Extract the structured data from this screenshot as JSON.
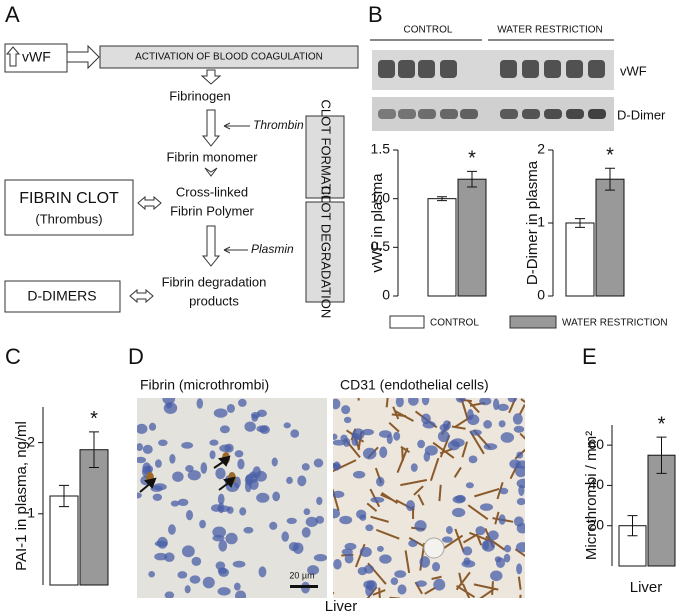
{
  "panel_letters": [
    "A",
    "B",
    "C",
    "D",
    "E"
  ],
  "diagram": {
    "vwf": "vWF",
    "activation": "ACTIVATION OF BLOOD COAGULATION",
    "fibrinogen": "Fibrinogen",
    "thrombin": "Thrombin",
    "fibrin_monomer": "Fibrin monomer",
    "cross_linked": "Cross-linked",
    "fibrin_polymer": "Fibrin Polymer",
    "fibrin_clot": "FIBRIN CLOT",
    "thrombus": "(Thrombus)",
    "plasmin": "Plasmin",
    "degradation_1": "Fibrin degradation",
    "degradation_2": "products",
    "d_dimers": "D-DIMERS",
    "clot_formation": "CLOT FORMATION",
    "clot_degradation": "CLOT DEGRADATION"
  },
  "blots": {
    "groups": [
      "CONTROL",
      "WATER RESTRICTION"
    ],
    "rows": [
      "vWF",
      "D-Dimer"
    ]
  },
  "legend": [
    {
      "name": "CONTROL",
      "color": "#ffffff"
    },
    {
      "name": "WATER RESTRICTION",
      "color": "#999999"
    }
  ],
  "micrographs": {
    "titles": [
      "Fibrin (microthrombi)",
      "CD31 (endothelial cells)"
    ],
    "scale_bar": "20 µm",
    "caption": "Liver"
  },
  "chart_data": [
    {
      "type": "bar",
      "ylabel": "vWF in plasma",
      "values": [
        1.0,
        1.2
      ],
      "errors": [
        0.02,
        0.08
      ],
      "colors": [
        "#ffffff",
        "#999999"
      ],
      "ylim": [
        0,
        1.5
      ],
      "yticks": [
        0,
        0.5,
        {
          "value": 1,
          "label": "1.0"
        },
        1.5
      ],
      "annotation": "*"
    },
    {
      "type": "bar",
      "ylabel": "D-Dimer in plasma",
      "values": [
        1.0,
        1.6
      ],
      "errors": [
        0.06,
        0.15
      ],
      "colors": [
        "#ffffff",
        "#999999"
      ],
      "ylim": [
        0,
        2
      ],
      "yticks": [
        0,
        1,
        2
      ],
      "annotation": "*"
    },
    {
      "type": "bar",
      "ylabel": "PAI-1 in plasma, ng/ml",
      "values": [
        1.25,
        1.9
      ],
      "errors": [
        0.15,
        0.25
      ],
      "colors": [
        "#ffffff",
        "#999999"
      ],
      "ylim": [
        0,
        2.5
      ],
      "yticks": [
        1,
        2
      ],
      "annotation": "*"
    },
    {
      "type": "bar",
      "ylabel": "Microthrombi / mm²",
      "xlabel": "Liver",
      "values": [
        20,
        55
      ],
      "errors": [
        5,
        9
      ],
      "colors": [
        "#ffffff",
        "#999999"
      ],
      "ylim": [
        0,
        70
      ],
      "yticks": [
        20,
        40,
        60
      ],
      "annotation": "*"
    }
  ]
}
